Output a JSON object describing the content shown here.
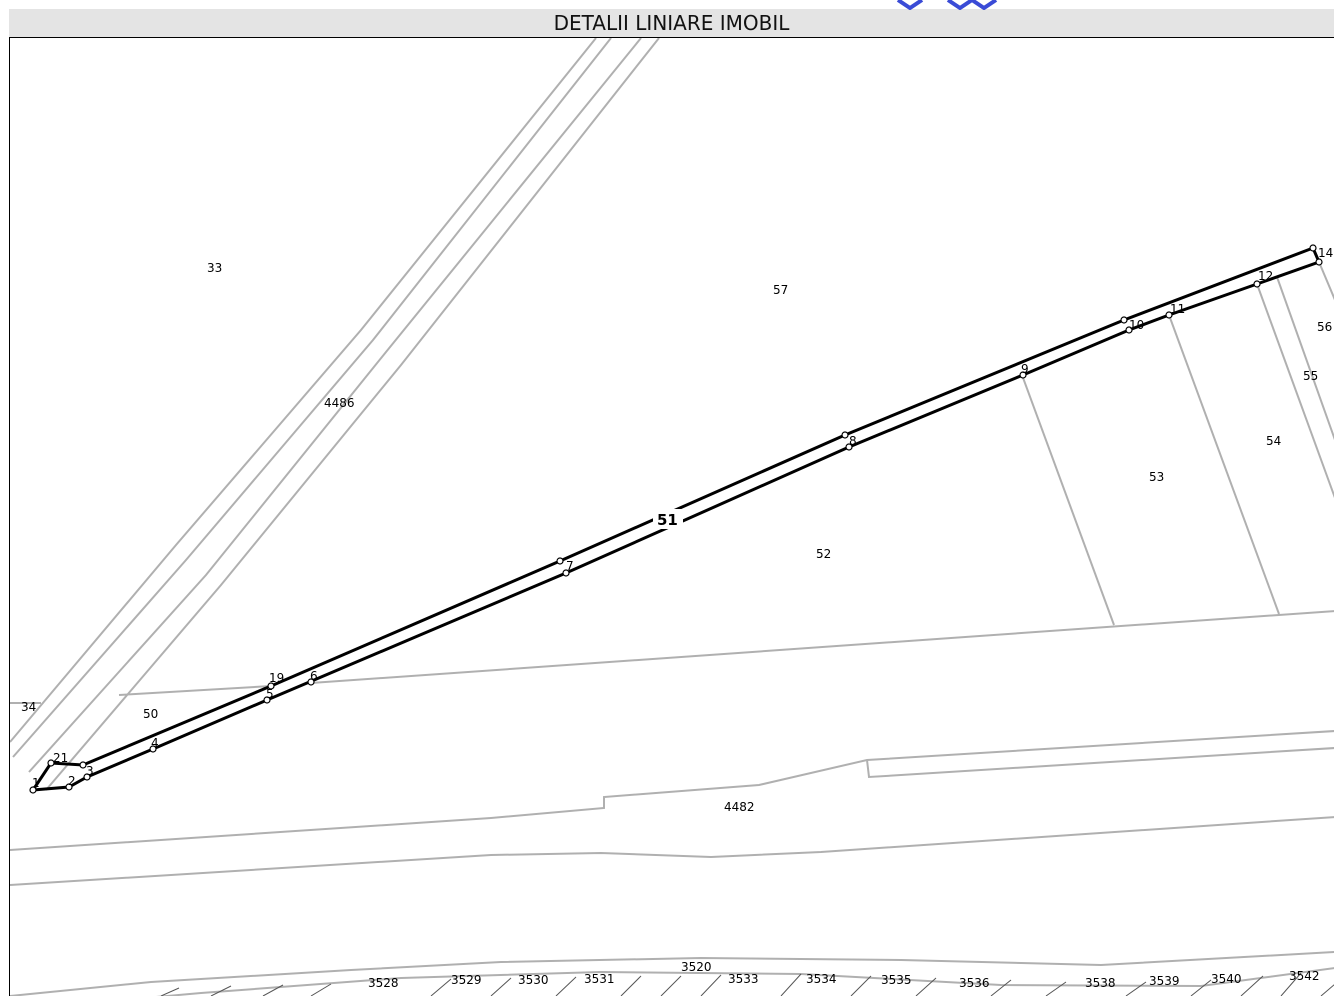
{
  "header": {
    "title": "DETALII LINIARE IMOBIL"
  },
  "colors": {
    "boundary": "#000000",
    "neighbor": "#b0b0b0",
    "title_bg": "#e4e4e4",
    "logo": "#3a4bd6"
  },
  "map": {
    "main_parcel": "51",
    "parcels": [
      {
        "id": "p33",
        "text": "33"
      },
      {
        "id": "p57",
        "text": "57"
      },
      {
        "id": "p4486",
        "text": "4486"
      },
      {
        "id": "p56",
        "text": "56"
      },
      {
        "id": "p55",
        "text": "55"
      },
      {
        "id": "p54",
        "text": "54"
      },
      {
        "id": "p53",
        "text": "53"
      },
      {
        "id": "p52",
        "text": "52"
      },
      {
        "id": "p34",
        "text": "34"
      },
      {
        "id": "p50",
        "text": "50"
      },
      {
        "id": "p4482",
        "text": "4482"
      },
      {
        "id": "p3520",
        "text": "3520"
      },
      {
        "id": "p3528",
        "text": "3528"
      },
      {
        "id": "p3529",
        "text": "3529"
      },
      {
        "id": "p3530",
        "text": "3530"
      },
      {
        "id": "p3531",
        "text": "3531"
      },
      {
        "id": "p3533",
        "text": "3533"
      },
      {
        "id": "p3534",
        "text": "3534"
      },
      {
        "id": "p3535",
        "text": "3535"
      },
      {
        "id": "p3536",
        "text": "3536"
      },
      {
        "id": "p3538",
        "text": "3538"
      },
      {
        "id": "p3539",
        "text": "3539"
      },
      {
        "id": "p3540",
        "text": "3540"
      },
      {
        "id": "p3542",
        "text": "3542"
      }
    ],
    "points": [
      "1",
      "2",
      "3",
      "4",
      "5",
      "6",
      "7",
      "8",
      "9",
      "10",
      "11",
      "12",
      "14",
      "19",
      "21"
    ]
  }
}
